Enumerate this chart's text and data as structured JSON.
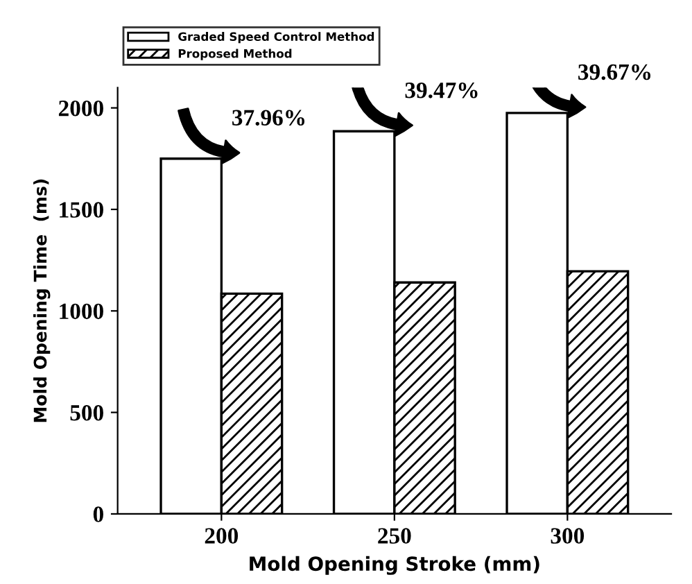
{
  "chart_data": {
    "type": "bar",
    "xlabel": "Mold Opening Stroke (mm)",
    "ylabel": "Mold Opening Time  (ms)",
    "categories": [
      "200",
      "250",
      "300"
    ],
    "series": [
      {
        "name": "Graded Speed Control Method",
        "color": "#ffffff",
        "values": [
          1750,
          1885,
          1975
        ]
      },
      {
        "name": "Proposed Method",
        "color": "#000000",
        "values": [
          1085,
          1140,
          1195
        ]
      }
    ],
    "ylim": [
      0,
      2100
    ],
    "yticks": [
      0,
      500,
      1000,
      1500,
      2000
    ],
    "legend": "top",
    "grid": false,
    "annotations": [
      "37.96%",
      "39.47%",
      "39.67%"
    ]
  }
}
